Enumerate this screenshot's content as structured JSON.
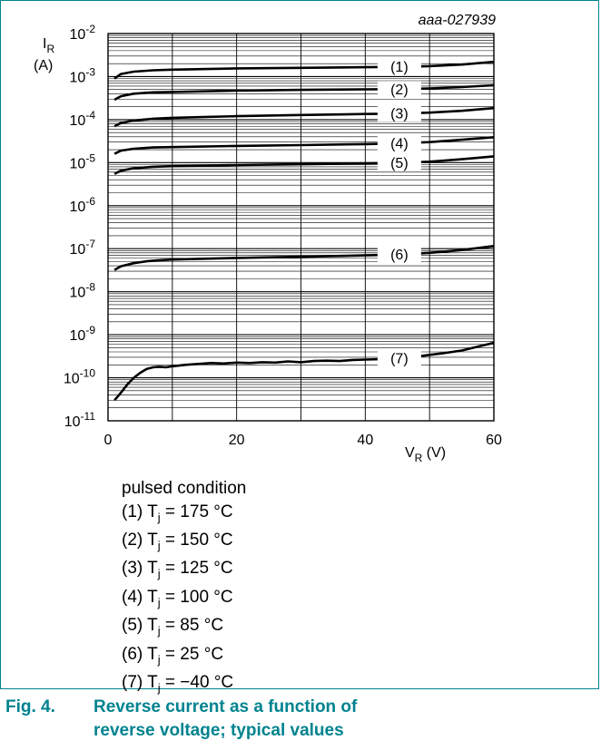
{
  "chart_data": {
    "type": "line",
    "id_label": "aaa-027939",
    "y_axis": {
      "label_symbol": "I",
      "label_sub": "R",
      "label_unit": "(A)",
      "scale": "log",
      "ticks": [
        {
          "base": "10",
          "exp": "-2"
        },
        {
          "base": "10",
          "exp": "-3"
        },
        {
          "base": "10",
          "exp": "-4"
        },
        {
          "base": "10",
          "exp": "-5"
        },
        {
          "base": "10",
          "exp": "-6"
        },
        {
          "base": "10",
          "exp": "-7"
        },
        {
          "base": "10",
          "exp": "-8"
        },
        {
          "base": "10",
          "exp": "-9"
        },
        {
          "base": "10",
          "exp": "-10"
        },
        {
          "base": "10",
          "exp": "-11"
        }
      ],
      "ylim": [
        1e-11,
        0.01
      ]
    },
    "x_axis": {
      "label_symbol": "V",
      "label_sub": "R",
      "label_unit": "(V)",
      "ticks": [
        "0",
        "20",
        "40",
        "60"
      ],
      "xlim": [
        0,
        60
      ],
      "grid_step": 10
    },
    "grid": true,
    "series": [
      {
        "name": "(1)",
        "x": [
          1,
          2,
          4,
          7,
          10,
          20,
          30,
          40,
          45,
          50,
          55,
          60
        ],
        "y": [
          0.0009,
          0.00115,
          0.0013,
          0.0014,
          0.00145,
          0.00155,
          0.0016,
          0.00165,
          0.00168,
          0.00175,
          0.0019,
          0.0022
        ],
        "label_x": 45.3
      },
      {
        "name": "(2)",
        "x": [
          1,
          2,
          4,
          7,
          10,
          20,
          30,
          40,
          45,
          50,
          55,
          60
        ],
        "y": [
          0.00029,
          0.00035,
          0.0004,
          0.00043,
          0.00044,
          0.00047,
          0.00049,
          0.000505,
          0.00051,
          0.00053,
          0.00057,
          0.00063
        ],
        "label_x": 45.3
      },
      {
        "name": "(3)",
        "x": [
          1,
          2,
          4,
          7,
          10,
          20,
          30,
          40,
          45,
          50,
          55,
          60
        ],
        "y": [
          7e-05,
          8.3e-05,
          9.5e-05,
          0.000105,
          0.00011,
          0.00012,
          0.000128,
          0.000135,
          0.000138,
          0.000145,
          0.00016,
          0.000185
        ],
        "label_x": 45.3
      },
      {
        "name": "(4)",
        "x": [
          1,
          2,
          4,
          7,
          10,
          20,
          30,
          40,
          45,
          50,
          55,
          60
        ],
        "y": [
          1.6e-05,
          1.9e-05,
          2.1e-05,
          2.25e-05,
          2.3e-05,
          2.45e-05,
          2.55e-05,
          2.7e-05,
          2.8e-05,
          3e-05,
          3.4e-05,
          3.9e-05
        ],
        "label_x": 45.3
      },
      {
        "name": "(5)",
        "x": [
          1,
          2,
          4,
          7,
          10,
          20,
          30,
          40,
          45,
          50,
          55,
          60
        ],
        "y": [
          5.5e-06,
          6.5e-06,
          7.4e-06,
          8e-06,
          8.3e-06,
          8.8e-06,
          9.2e-06,
          9.6e-06,
          9.9e-06,
          1.05e-05,
          1.2e-05,
          1.4e-05
        ],
        "label_x": 45.3
      },
      {
        "name": "(6)",
        "x": [
          1,
          2,
          4,
          6,
          8,
          10,
          20,
          30,
          40,
          45,
          50,
          55,
          60
        ],
        "y": [
          3.2e-08,
          3.9e-08,
          4.6e-08,
          5.1e-08,
          5.4e-08,
          5.6e-08,
          6.1e-08,
          6.5e-08,
          7e-08,
          7.3e-08,
          8e-08,
          9.3e-08,
          1.15e-07
        ],
        "label_x": 45.3
      },
      {
        "name": "(7)",
        "x": [
          1,
          2,
          3,
          4,
          5,
          6,
          7,
          8,
          9,
          10,
          12,
          14,
          16,
          18,
          20,
          22,
          24,
          26,
          28,
          30,
          32,
          34,
          36,
          38,
          40,
          42,
          44,
          46,
          48,
          50,
          52,
          55,
          58,
          60
        ],
        "y": [
          3e-11,
          4.5e-11,
          7e-11,
          1e-10,
          1.3e-10,
          1.6e-10,
          1.75e-10,
          1.8e-10,
          1.75e-10,
          1.85e-10,
          2e-10,
          2.1e-10,
          2.2e-10,
          2.15e-10,
          2.25e-10,
          2.2e-10,
          2.3e-10,
          2.25e-10,
          2.4e-10,
          2.3e-10,
          2.45e-10,
          2.5e-10,
          2.45e-10,
          2.6e-10,
          2.65e-10,
          2.7e-10,
          2.75e-10,
          2.9e-10,
          3.1e-10,
          3.4e-10,
          3.7e-10,
          4.3e-10,
          5.5e-10,
          6.5e-10
        ],
        "label_x": 45.3
      }
    ]
  },
  "legend": {
    "heading": "pulsed condition",
    "items": [
      {
        "prefix": "(1) T",
        "sub": "j",
        "rest": " = 175 °C"
      },
      {
        "prefix": "(2) T",
        "sub": "j",
        "rest": " = 150 °C"
      },
      {
        "prefix": "(3) T",
        "sub": "j",
        "rest": " = 125 °C"
      },
      {
        "prefix": "(4) T",
        "sub": "j",
        "rest": " = 100 °C"
      },
      {
        "prefix": "(5) T",
        "sub": "j",
        "rest": " = 85 °C"
      },
      {
        "prefix": "(6) T",
        "sub": "j",
        "rest": " = 25 °C"
      },
      {
        "prefix": "(7) T",
        "sub": "j",
        "rest": " = −40 °C"
      }
    ]
  },
  "caption": {
    "number": "Fig. 4.",
    "text": "Reverse current as a function of reverse voltage; typical values"
  },
  "colors": {
    "frame": "#00838f",
    "caption": "#00838f",
    "ink": "#000000"
  }
}
